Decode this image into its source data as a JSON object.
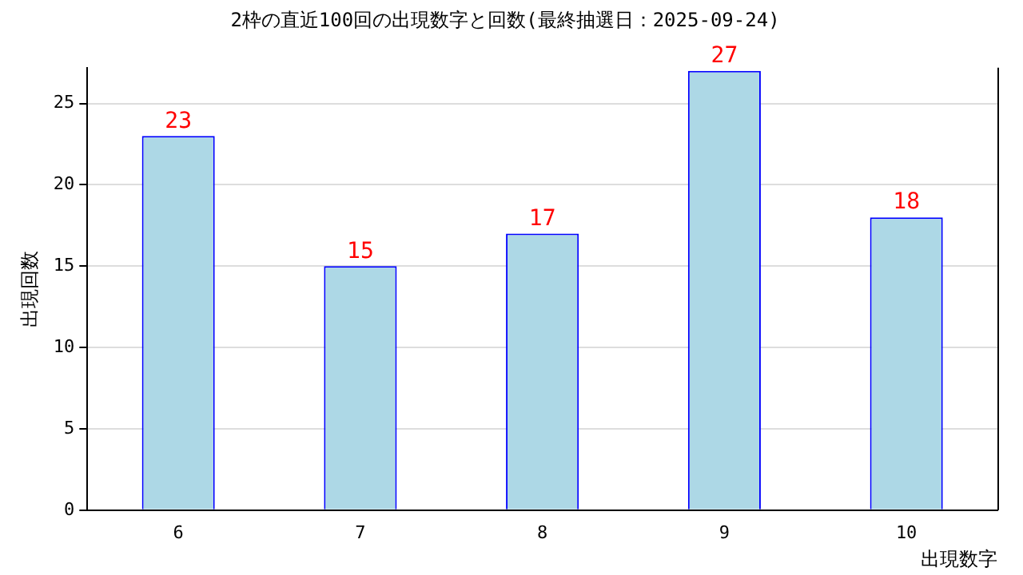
{
  "chart_data": {
    "type": "bar",
    "title": "2枠の直近100回の出現数字と回数(最終抽選日：2025-09-24)",
    "xlabel": "出現数字",
    "ylabel": "出現回数",
    "categories": [
      "6",
      "7",
      "8",
      "9",
      "10"
    ],
    "values": [
      23,
      15,
      17,
      27,
      18
    ],
    "color": "#add8e6",
    "ylim": [
      0,
      27.2
    ],
    "yticks": [
      0,
      5,
      10,
      15,
      20,
      25
    ],
    "grid": "y",
    "legend": false,
    "data_labels": true
  }
}
